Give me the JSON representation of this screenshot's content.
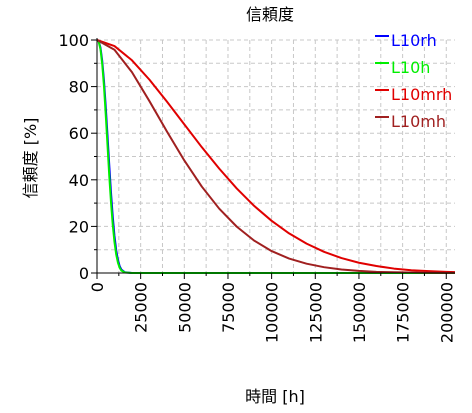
{
  "chart_data": {
    "type": "line",
    "title": "信頼度",
    "xlabel": "時間 [h]",
    "ylabel": "信頼度 [%]",
    "xlim": [
      0,
      205000
    ],
    "ylim": [
      0,
      100
    ],
    "x_ticks": [
      0,
      25000,
      50000,
      75000,
      100000,
      125000,
      150000,
      175000,
      200000
    ],
    "y_ticks": [
      0,
      20,
      40,
      60,
      80,
      100
    ],
    "grid": true,
    "legend_position": "top-right",
    "series": [
      {
        "name": "L10rh",
        "color": "#0000ff",
        "x": [
          0,
          1000,
          2000,
          3000,
          4000,
          5000,
          6000,
          7000,
          8000,
          9000,
          10000,
          11000,
          12000,
          13000,
          14000,
          16000,
          20000,
          205000
        ],
        "y": [
          100,
          99.4,
          96.7,
          91,
          82.5,
          71.5,
          59.2,
          46.6,
          34.7,
          24.4,
          16.0,
          9.8,
          5.6,
          2.9,
          1.4,
          0.3,
          0,
          0
        ]
      },
      {
        "name": "L10h",
        "color": "#00ee00",
        "x": [
          0,
          1000,
          2000,
          3000,
          4000,
          5000,
          6000,
          7000,
          8000,
          9000,
          10000,
          11000,
          12000,
          13000,
          14000,
          16000,
          20000,
          205000
        ],
        "y": [
          100,
          99.2,
          96.0,
          89.5,
          80.0,
          68.0,
          55.0,
          42.0,
          30.5,
          20.8,
          13.3,
          7.9,
          4.4,
          2.2,
          1.0,
          0.2,
          0,
          0
        ]
      },
      {
        "name": "L10mrh",
        "color": "#e00000",
        "x": [
          0,
          10000,
          20000,
          30000,
          40000,
          50000,
          60000,
          70000,
          80000,
          90000,
          100000,
          110000,
          120000,
          130000,
          140000,
          150000,
          160000,
          170000,
          180000,
          190000,
          200000,
          205000
        ],
        "y": [
          100,
          97.4,
          91.3,
          83.0,
          73.6,
          63.8,
          54.0,
          44.8,
          36.3,
          28.8,
          22.4,
          17.0,
          12.6,
          9.1,
          6.4,
          4.4,
          3.0,
          1.9,
          1.2,
          0.8,
          0.5,
          0.4
        ]
      },
      {
        "name": "L10mh",
        "color": "#a02020",
        "x": [
          0,
          10000,
          20000,
          30000,
          40000,
          50000,
          60000,
          70000,
          80000,
          90000,
          100000,
          110000,
          120000,
          130000,
          140000,
          150000,
          160000,
          170000,
          180000,
          190000,
          200000,
          205000
        ],
        "y": [
          100,
          95.8,
          86.2,
          73.8,
          60.8,
          48.3,
          37.1,
          27.6,
          19.9,
          13.9,
          9.4,
          6.2,
          4.0,
          2.5,
          1.5,
          0.9,
          0.5,
          0.3,
          0.2,
          0.1,
          0.05,
          0.03
        ]
      }
    ]
  }
}
